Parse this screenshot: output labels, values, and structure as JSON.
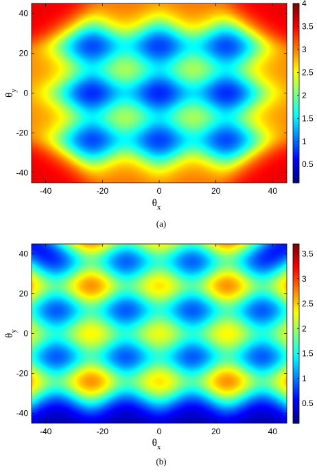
{
  "chart_data": [
    {
      "type": "heatmap",
      "panel_label": "(a)",
      "xlabel": "θx",
      "ylabel": "θy",
      "xlim": [
        -45,
        45
      ],
      "ylim": [
        -45,
        45
      ],
      "x_ticks": [
        -40,
        -20,
        0,
        20,
        40
      ],
      "y_ticks": [
        -40,
        -20,
        0,
        20,
        40
      ],
      "colorbar": {
        "range": [
          0.1,
          4
        ],
        "ticks": [
          0.5,
          1,
          1.5,
          2,
          2.5,
          3,
          3.5,
          4
        ],
        "colormap": "jet"
      },
      "maxima": [
        {
          "x": -36,
          "y": 36,
          "value": 3.6
        },
        {
          "x": -12,
          "y": 36,
          "value": 3.1
        },
        {
          "x": 12,
          "y": 36,
          "value": 3.1
        },
        {
          "x": 36,
          "y": 36,
          "value": 3.6
        },
        {
          "x": -36,
          "y": 12,
          "value": 3.0
        },
        {
          "x": -12,
          "y": 12,
          "value": 2.8
        },
        {
          "x": 12,
          "y": 12,
          "value": 2.8
        },
        {
          "x": 36,
          "y": 12,
          "value": 3.0
        },
        {
          "x": -36,
          "y": -12,
          "value": 3.0
        },
        {
          "x": -12,
          "y": -12,
          "value": 2.8
        },
        {
          "x": 12,
          "y": -12,
          "value": 2.8
        },
        {
          "x": 36,
          "y": -12,
          "value": 3.0
        },
        {
          "x": -36,
          "y": -36,
          "value": 3.6
        },
        {
          "x": -12,
          "y": -36,
          "value": 3.1
        },
        {
          "x": 12,
          "y": -36,
          "value": 3.1
        },
        {
          "x": 36,
          "y": -36,
          "value": 3.6
        }
      ],
      "minima": [
        {
          "x": -24,
          "y": 24,
          "value": 0.2
        },
        {
          "x": 0,
          "y": 24,
          "value": 0.2
        },
        {
          "x": 24,
          "y": 24,
          "value": 0.2
        },
        {
          "x": -24,
          "y": 0,
          "value": 0.1
        },
        {
          "x": 0,
          "y": 0,
          "value": 0.1
        },
        {
          "x": 24,
          "y": 0,
          "value": 0.1
        },
        {
          "x": -24,
          "y": -24,
          "value": 0.2
        },
        {
          "x": 0,
          "y": -24,
          "value": 0.2
        },
        {
          "x": 24,
          "y": -24,
          "value": 0.2
        }
      ]
    },
    {
      "type": "heatmap",
      "panel_label": "(b)",
      "xlabel": "θx",
      "ylabel": "θy",
      "xlim": [
        -45,
        45
      ],
      "ylim": [
        -45,
        45
      ],
      "x_ticks": [
        -40,
        -20,
        0,
        20,
        40
      ],
      "y_ticks": [
        -40,
        -20,
        0,
        20,
        40
      ],
      "colorbar": {
        "range": [
          0.1,
          3.7
        ],
        "ticks": [
          0.5,
          1,
          1.5,
          2,
          2.5,
          3,
          3.5
        ],
        "colormap": "jet"
      },
      "maxima": [
        {
          "x": -24,
          "y": 48,
          "value": 3.4
        },
        {
          "x": 0,
          "y": 48,
          "value": 3.0
        },
        {
          "x": 24,
          "y": 48,
          "value": 3.4
        },
        {
          "x": -48,
          "y": 24,
          "value": 3.2
        },
        {
          "x": -24,
          "y": 24,
          "value": 3.5
        },
        {
          "x": 0,
          "y": 24,
          "value": 3.1
        },
        {
          "x": 24,
          "y": 24,
          "value": 3.5
        },
        {
          "x": 48,
          "y": 24,
          "value": 3.2
        },
        {
          "x": -48,
          "y": 0,
          "value": 2.8
        },
        {
          "x": -24,
          "y": 0,
          "value": 3.0
        },
        {
          "x": 0,
          "y": 0,
          "value": 2.9
        },
        {
          "x": 24,
          "y": 0,
          "value": 3.0
        },
        {
          "x": 48,
          "y": 0,
          "value": 2.8
        },
        {
          "x": -48,
          "y": -24,
          "value": 3.2
        },
        {
          "x": -24,
          "y": -24,
          "value": 3.5
        },
        {
          "x": 0,
          "y": -24,
          "value": 3.1
        },
        {
          "x": 24,
          "y": -24,
          "value": 3.5
        },
        {
          "x": 48,
          "y": -24,
          "value": 3.2
        }
      ],
      "minima": [
        {
          "x": -36,
          "y": 36,
          "value": 0.2
        },
        {
          "x": -12,
          "y": 36,
          "value": 0.2
        },
        {
          "x": 12,
          "y": 36,
          "value": 0.2
        },
        {
          "x": 36,
          "y": 36,
          "value": 0.2
        },
        {
          "x": -36,
          "y": 12,
          "value": 0.2
        },
        {
          "x": -12,
          "y": 12,
          "value": 0.2
        },
        {
          "x": 12,
          "y": 12,
          "value": 0.2
        },
        {
          "x": 36,
          "y": 12,
          "value": 0.2
        },
        {
          "x": -36,
          "y": -12,
          "value": 0.2
        },
        {
          "x": -12,
          "y": -12,
          "value": 0.2
        },
        {
          "x": 12,
          "y": -12,
          "value": 0.2
        },
        {
          "x": 36,
          "y": -12,
          "value": 0.2
        },
        {
          "x": -36,
          "y": -36,
          "value": 0.2
        },
        {
          "x": -12,
          "y": -36,
          "value": 0.2
        },
        {
          "x": 12,
          "y": -36,
          "value": 0.2
        },
        {
          "x": 36,
          "y": -36,
          "value": 0.2
        }
      ]
    }
  ]
}
